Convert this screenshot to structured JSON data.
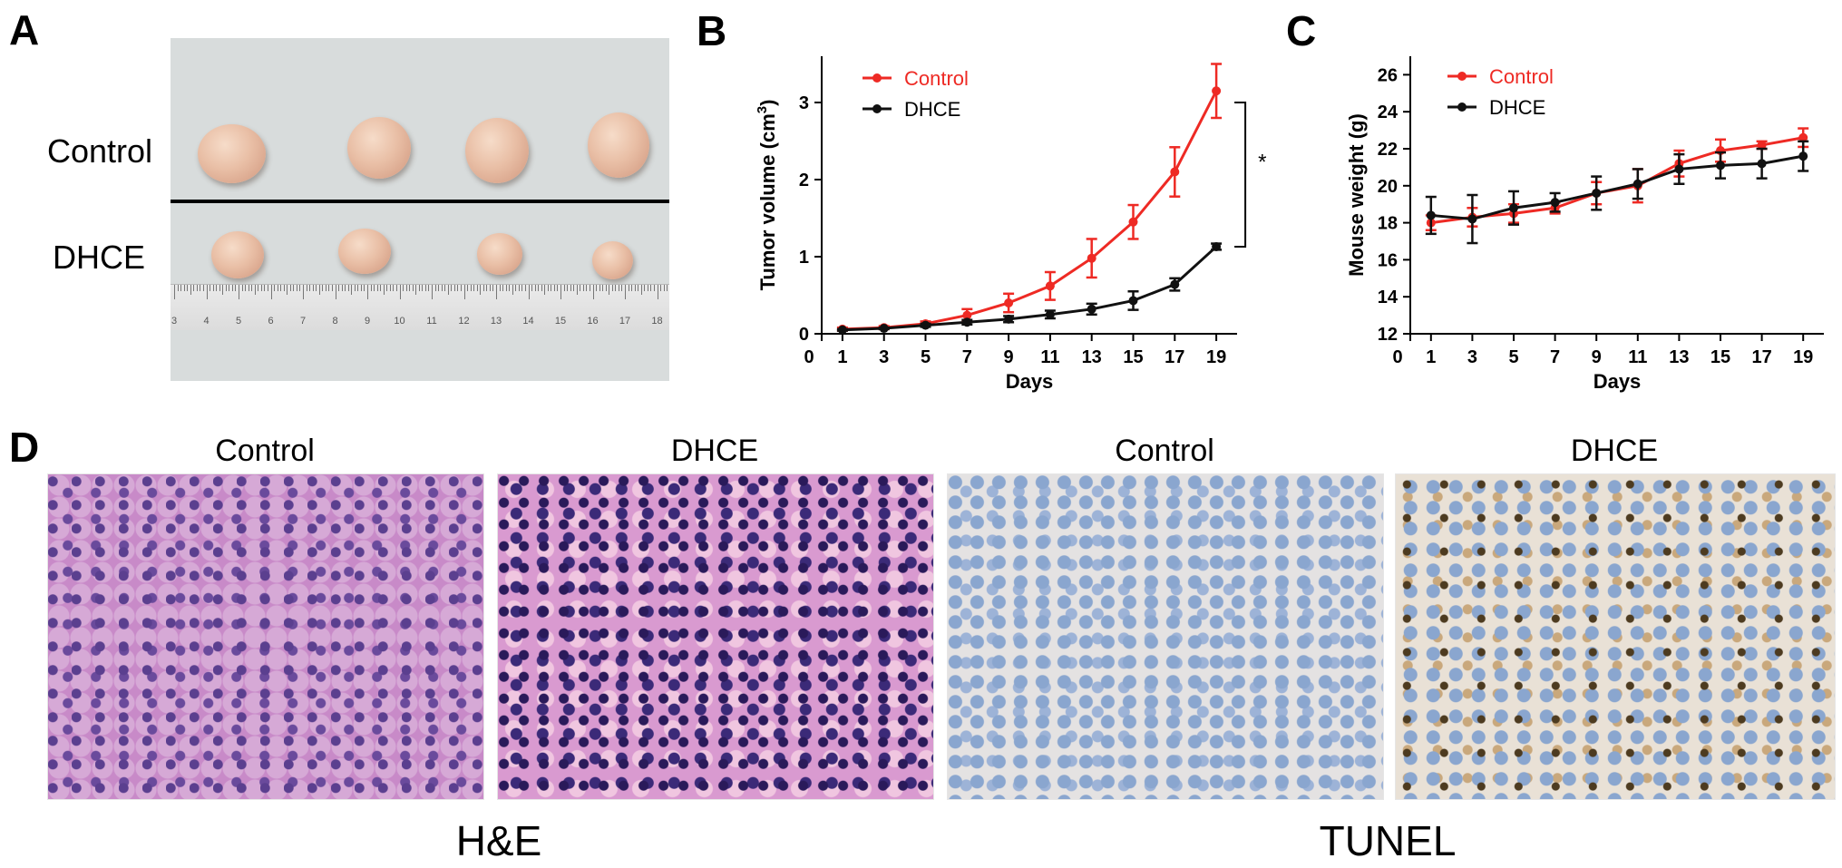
{
  "panel_a": {
    "letter": "A",
    "row_labels": [
      "Control",
      "DHCE"
    ],
    "ruler_numbers": [
      "3",
      "4",
      "5",
      "6",
      "7",
      "8",
      "9",
      "10",
      "11",
      "12",
      "13",
      "14",
      "15",
      "16",
      "17",
      "18"
    ]
  },
  "panel_d": {
    "letter": "D",
    "image_captions": [
      "Control",
      "DHCE",
      "Control",
      "DHCE"
    ],
    "group_labels": [
      "H&E",
      "TUNEL"
    ]
  },
  "colors": {
    "control": "#ee2a24",
    "dhce": "#111111",
    "axis": "#000000"
  },
  "chart_data": [
    {
      "panel": "B",
      "type": "line",
      "xlabel": "Days",
      "ylabel": "Tumor volume (cm",
      "ylabel_sup": "3",
      "ylabel_close": ")",
      "xlim": [
        0,
        20
      ],
      "ylim": [
        0,
        3.6
      ],
      "x_ticks": [
        0,
        1,
        3,
        5,
        7,
        9,
        11,
        13,
        15,
        17,
        19
      ],
      "y_ticks": [
        0,
        1,
        2,
        3
      ],
      "x": [
        1,
        3,
        5,
        7,
        9,
        11,
        13,
        15,
        17,
        19
      ],
      "series": [
        {
          "name": "Control",
          "color": "#ee2a24",
          "values": [
            0.06,
            0.08,
            0.13,
            0.24,
            0.4,
            0.62,
            0.98,
            1.45,
            2.1,
            3.15
          ],
          "errors": [
            0.02,
            0.02,
            0.03,
            0.08,
            0.12,
            0.18,
            0.25,
            0.22,
            0.32,
            0.35
          ]
        },
        {
          "name": "DHCE",
          "color": "#111111",
          "values": [
            0.05,
            0.07,
            0.11,
            0.15,
            0.19,
            0.25,
            0.32,
            0.43,
            0.64,
            1.13
          ],
          "errors": [
            0.01,
            0.01,
            0.02,
            0.03,
            0.04,
            0.05,
            0.07,
            0.12,
            0.08,
            0.04
          ]
        }
      ],
      "annotation": "*",
      "legend_position": "top-left"
    },
    {
      "panel": "C",
      "type": "line",
      "xlabel": "Days",
      "ylabel": "Mouse weight (g)",
      "xlim": [
        0,
        20
      ],
      "ylim": [
        12,
        27
      ],
      "x_ticks": [
        0,
        1,
        3,
        5,
        7,
        9,
        11,
        13,
        15,
        17,
        19
      ],
      "y_ticks": [
        12,
        14,
        16,
        18,
        20,
        22,
        24,
        26
      ],
      "x": [
        1,
        3,
        5,
        7,
        9,
        11,
        13,
        15,
        17,
        19
      ],
      "series": [
        {
          "name": "Control",
          "color": "#ee2a24",
          "values": [
            18.0,
            18.3,
            18.5,
            18.8,
            19.6,
            20.0,
            21.2,
            21.9,
            22.2,
            22.6
          ],
          "errors": [
            0.4,
            0.5,
            0.5,
            0.3,
            0.6,
            0.9,
            0.7,
            0.6,
            0.2,
            0.5
          ]
        },
        {
          "name": "DHCE",
          "color": "#111111",
          "values": [
            18.4,
            18.2,
            18.8,
            19.1,
            19.6,
            20.1,
            20.9,
            21.1,
            21.2,
            21.6
          ],
          "errors": [
            1.0,
            1.3,
            0.9,
            0.5,
            0.9,
            0.8,
            0.8,
            0.7,
            0.8,
            0.8
          ]
        }
      ],
      "legend_position": "top-left"
    }
  ]
}
